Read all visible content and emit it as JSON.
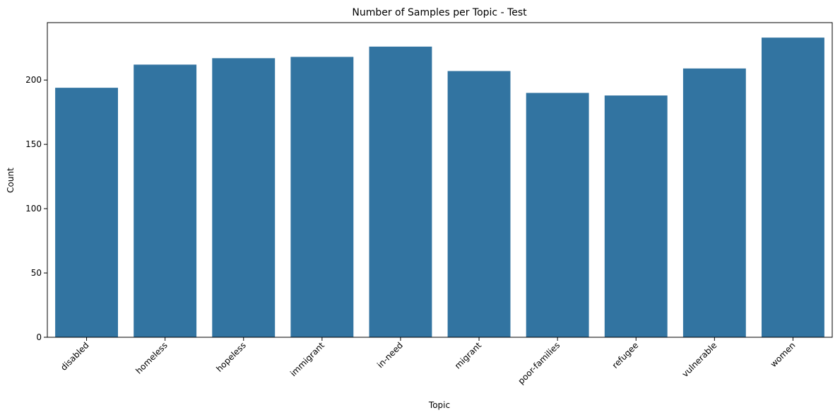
{
  "chart_data": {
    "type": "bar",
    "title": "Number of Samples per Topic - Test",
    "xlabel": "Topic",
    "ylabel": "Count",
    "categories": [
      "disabled",
      "homeless",
      "hopeless",
      "immigrant",
      "in-need",
      "migrant",
      "poor-families",
      "refugee",
      "vulnerable",
      "women"
    ],
    "values": [
      194,
      212,
      217,
      218,
      226,
      207,
      190,
      188,
      209,
      233
    ],
    "ylim": [
      0,
      244.65
    ],
    "yticks": [
      0,
      50,
      100,
      150,
      200
    ],
    "grid": false,
    "legend": "none",
    "bar_color": "#3274a1",
    "x_tick_rotation_deg": 45
  }
}
